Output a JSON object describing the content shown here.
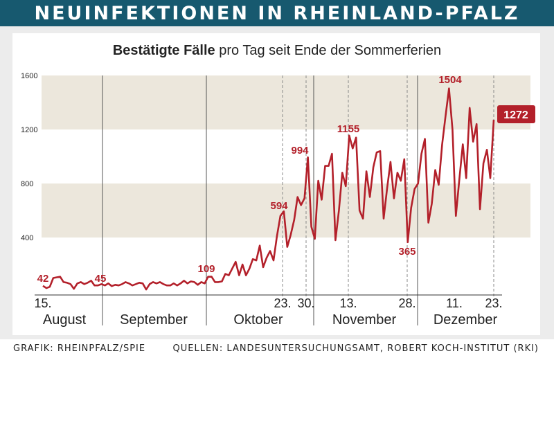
{
  "header": {
    "title": "NEUINFEKTIONEN IN RHEINLAND-PFALZ"
  },
  "chart_title": {
    "bold": "Bestätigte Fälle",
    "rest": " pro Tag seit Ende der Sommerferien"
  },
  "footer": {
    "left": "GRAFIK: RHEINPFALZ/SPIE",
    "right": "QUELLEN: LANDESUNTERSUCHUNGSAMT, ROBERT KOCH-INSTITUT (RKI)"
  },
  "colors": {
    "header_bg": "#17596f",
    "line": "#b3202a",
    "band": "#ece7dc",
    "value_label": "#b3202a"
  },
  "chart_data": {
    "type": "line",
    "title": "Bestätigte Fälle pro Tag seit Ende der Sommerferien",
    "ylim": [
      0,
      1600
    ],
    "yticks": [
      400,
      800,
      1200,
      1600
    ],
    "months": [
      "August",
      "September",
      "Oktober",
      "November",
      "Dezember"
    ],
    "date_ticks": [
      "15.",
      "23.",
      "30.",
      "13.",
      "28.",
      "11.",
      "23."
    ],
    "annotations": [
      {
        "label": "42",
        "value": 42
      },
      {
        "label": "45",
        "value": 45
      },
      {
        "label": "109",
        "value": 109
      },
      {
        "label": "594",
        "value": 594
      },
      {
        "label": "994",
        "value": 994
      },
      {
        "label": "1155",
        "value": 1155
      },
      {
        "label": "365",
        "value": 365
      },
      {
        "label": "1504",
        "value": 1504
      },
      {
        "label": "1272",
        "value": 1272
      }
    ],
    "series": [
      {
        "values": [
          42,
          25,
          35,
          100,
          105,
          110,
          70,
          65,
          55,
          20,
          60,
          70,
          55,
          65,
          80,
          45,
          45,
          55,
          45,
          60,
          40,
          50,
          45,
          55,
          70,
          60,
          45,
          55,
          65,
          60,
          15,
          55,
          70,
          60,
          70,
          55,
          45,
          45,
          60,
          45,
          60,
          80,
          60,
          75,
          70,
          50,
          70,
          60,
          109,
          110,
          70,
          70,
          75,
          130,
          120,
          170,
          220,
          120,
          200,
          120,
          170,
          240,
          230,
          340,
          180,
          250,
          300,
          230,
          410,
          560,
          594,
          330,
          420,
          530,
          700,
          640,
          690,
          994,
          480,
          390,
          820,
          680,
          930,
          930,
          1020,
          380,
          600,
          880,
          780,
          1155,
          1060,
          1140,
          600,
          540,
          890,
          700,
          920,
          1030,
          1040,
          540,
          760,
          960,
          690,
          880,
          820,
          980,
          365,
          620,
          760,
          800,
          1020,
          1130,
          510,
          650,
          900,
          790,
          1090,
          1300,
          1504,
          1200,
          560,
          830,
          1090,
          840,
          1360,
          1110,
          1240,
          610,
          950,
          1050,
          840,
          1272
        ]
      }
    ]
  }
}
